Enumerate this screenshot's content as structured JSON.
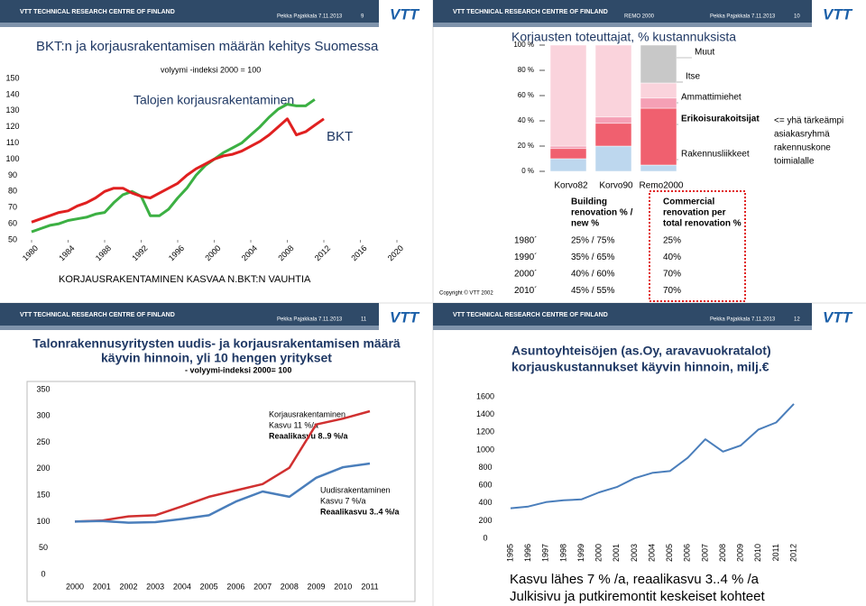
{
  "slides": [
    {
      "org": "VTT TECHNICAL RESEARCH CENTRE OF FINLAND",
      "author": "Pekka Pajakkala 7.11.2013",
      "page": "9",
      "logo": "VTT",
      "caption": "KORJAUSRAKENTAMINEN KASVAA N.BKT:N VAUHTIA"
    },
    {
      "org": "VTT TECHNICAL RESEARCH CENTRE OF FINLAND",
      "project": "REMO 2000",
      "author": "Pekka Pajakkala 7.11.2013",
      "page": "10",
      "logo": "VTT",
      "copyright": "Copyright © VTT 2002",
      "note": [
        "<= yhä tärkeämpi",
        "asiakasryhmä",
        "rakennuskone",
        "toimialalle"
      ],
      "table": {
        "header": [
          [
            "Building",
            "renovation % /",
            "new %"
          ],
          [
            "Commercial",
            "renovation per",
            "total renovation %"
          ]
        ],
        "rows": [
          [
            "1980´",
            "25% / 75%",
            "25%"
          ],
          [
            "1990´",
            "35% / 65%",
            "40%"
          ],
          [
            "2000´",
            "40% / 60%",
            "70%"
          ],
          [
            "2010´",
            "45% / 55%",
            "70%"
          ]
        ]
      }
    },
    {
      "org": "VTT TECHNICAL RESEARCH CENTRE OF FINLAND",
      "author": "Pekka Pajakkala 7.11.2013",
      "page": "11",
      "logo": "VTT"
    },
    {
      "org": "VTT TECHNICAL RESEARCH CENTRE OF FINLAND",
      "author": "Pekka Pajakkala 7.11.2013",
      "page": "12",
      "logo": "VTT",
      "caption": [
        "Kasvu lähes 7 % /a, reaalikasvu 3..4 % /a",
        "Julkisivu ja putkiremontit keskeiset kohteet"
      ]
    }
  ],
  "chart_data": [
    {
      "type": "line",
      "title": "BKT:n ja korjausrakentamisen määrän kehitys Suomessa",
      "subtitle": "volyymi -indeksi 2000 = 100",
      "x": [
        1980,
        1981,
        1982,
        1983,
        1984,
        1985,
        1986,
        1987,
        1988,
        1989,
        1990,
        1991,
        1992,
        1993,
        1994,
        1995,
        1996,
        1997,
        1998,
        1999,
        2000,
        2001,
        2002,
        2003,
        2004,
        2005,
        2006,
        2007,
        2008,
        2009,
        2010,
        2011,
        2012
      ],
      "xlim": [
        1980,
        2020
      ],
      "xticks": [
        1980,
        1984,
        1988,
        1992,
        1996,
        2000,
        2004,
        2008,
        2012,
        2016,
        2020
      ],
      "ylim": [
        50,
        150
      ],
      "yticks": [
        50,
        60,
        70,
        80,
        90,
        100,
        110,
        120,
        130,
        140,
        150
      ],
      "series": [
        {
          "name": "Talojen korjausrakentaminen",
          "color": "#3cb043",
          "values": [
            55,
            57,
            59,
            60,
            62,
            63,
            64,
            66,
            67,
            73,
            78,
            80,
            77,
            65,
            65,
            69,
            76,
            82,
            90,
            96,
            100,
            104,
            107,
            110,
            115,
            120,
            126,
            131,
            134,
            133,
            133,
            137,
            null
          ]
        },
        {
          "name": "BKT",
          "color": "#e02020",
          "values": [
            61,
            63,
            65,
            67,
            68,
            71,
            73,
            76,
            80,
            82,
            82,
            79,
            77,
            76,
            79,
            82,
            85,
            90,
            94,
            97,
            100,
            102,
            103,
            105,
            108,
            111,
            115,
            120,
            125,
            115,
            117,
            121,
            125
          ]
        }
      ]
    },
    {
      "type": "bar",
      "stacked": true,
      "title": "Korjausten toteuttajat, % kustannuksista",
      "categories": [
        "Korvo82",
        "Korvo90",
        "Remo2000"
      ],
      "ylim": [
        0,
        100
      ],
      "yticks": [
        {
          "value": 0,
          "label": "0 %"
        },
        {
          "value": 20,
          "label": "20 %"
        },
        {
          "value": 40,
          "label": "40 %"
        },
        {
          "value": 60,
          "label": "60 %"
        },
        {
          "value": 80,
          "label": "80 %"
        },
        {
          "value": 100,
          "label": "100 %"
        }
      ],
      "series": [
        {
          "name": "Rakennusliikkeet",
          "color": "#bdd7ee",
          "values": [
            10,
            20,
            5
          ]
        },
        {
          "name": "Erikoisurakoitsijat",
          "color": "#f0606f",
          "values": [
            8,
            18,
            45
          ]
        },
        {
          "name": "Ammattimiehet",
          "color": "#f5a0b5",
          "values": [
            2,
            5,
            8
          ]
        },
        {
          "name": "Itse",
          "color": "#fad3dc",
          "values": [
            80,
            57,
            12
          ]
        },
        {
          "name": "Muut",
          "color": "#c8c8c8",
          "values": [
            0,
            0,
            30
          ]
        }
      ]
    },
    {
      "type": "line",
      "title": [
        "Talonrakennusyritysten uudis- ja korjausrakentamisen määrä",
        "käyvin hinnoin, yli 10 hengen yritykset"
      ],
      "subtitle": "- volyymi-indeksi 2000= 100",
      "categories": [
        "2000",
        "2001",
        "2002",
        "2003",
        "2004",
        "2005",
        "2006",
        "2007",
        "2008",
        "2009",
        "2010",
        "2011"
      ],
      "ylim": [
        0,
        350
      ],
      "yticks": [
        0,
        50,
        100,
        150,
        200,
        250,
        300,
        350
      ],
      "series": [
        {
          "color": "#d03030",
          "values": [
            100,
            102,
            110,
            112,
            129,
            147,
            159,
            171,
            202,
            284,
            295,
            309
          ]
        },
        {
          "color": "#4a7ebb",
          "values": [
            100,
            101,
            98,
            99,
            105,
            112,
            138,
            157,
            147,
            183,
            203,
            210
          ]
        }
      ],
      "annotations": [
        [
          "Korjausrakentaminen",
          "Kasvu 11 %/a",
          "Reaalikasvu 8..9 %/a"
        ],
        [
          "Uudisrakentaminen",
          "Kasvu 7 %/a",
          "Reaalikasvu 3..4 %/a"
        ]
      ]
    },
    {
      "type": "line",
      "title": [
        "Asuntoyhteisöjen (as.Oy, aravavuokratalot)",
        "korjauskustannukset käyvin hinnoin, milj.€"
      ],
      "categories": [
        "1995",
        "1996",
        "1997",
        "1998",
        "1999",
        "2000",
        "2001",
        "2003",
        "2004",
        "2005",
        "2006",
        "2007",
        "2008",
        "2009",
        "2010",
        "2011",
        "2012"
      ],
      "ylim": [
        0,
        1600
      ],
      "yticks": [
        0,
        200,
        400,
        600,
        800,
        1000,
        1200,
        1400,
        1600
      ],
      "series": [
        {
          "color": "#4a7ebb",
          "values": [
            340,
            360,
            410,
            430,
            440,
            520,
            580,
            680,
            740,
            760,
            910,
            1120,
            980,
            1050,
            1230,
            1310,
            1520
          ]
        }
      ]
    }
  ]
}
